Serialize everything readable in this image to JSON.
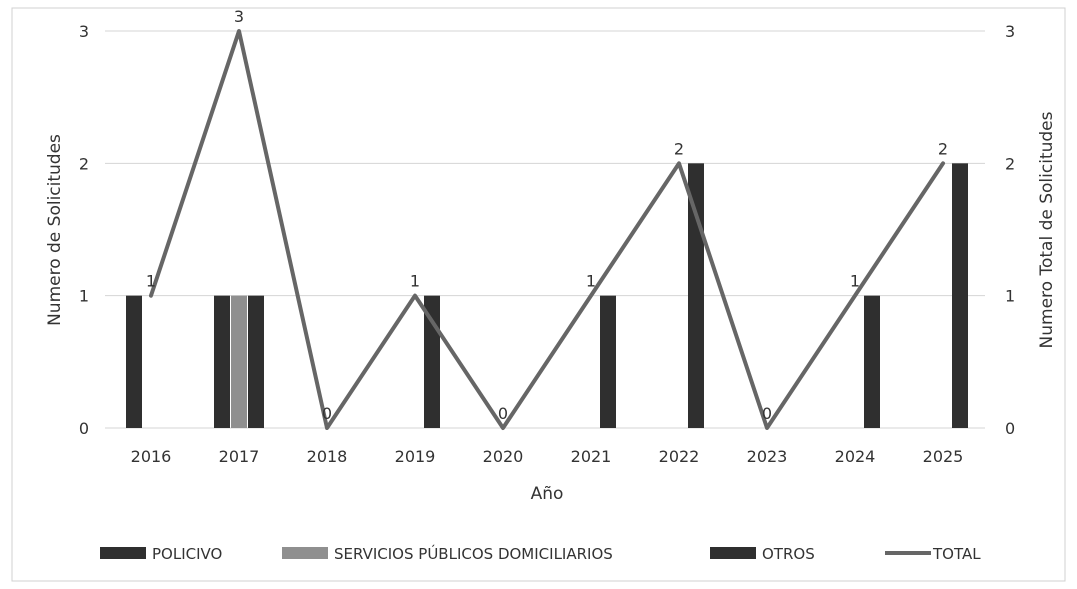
{
  "chart_data": {
    "type": "bar",
    "categories": [
      "2016",
      "2017",
      "2018",
      "2019",
      "2020",
      "2021",
      "2022",
      "2023",
      "2024",
      "2025"
    ],
    "series": [
      {
        "name": "POLICIVO",
        "kind": "bar",
        "color": "#2f2f2f",
        "values": [
          1,
          1,
          0,
          0,
          0,
          0,
          0,
          0,
          0,
          0
        ]
      },
      {
        "name": "SERVICIOS PÚBLICOS DOMICILIARIOS",
        "kind": "bar",
        "color": "#8f8f8f",
        "values": [
          0,
          1,
          0,
          0,
          0,
          0,
          0,
          0,
          0,
          0
        ]
      },
      {
        "name": "OTROS",
        "kind": "bar",
        "color": "#2f2f2f",
        "values": [
          0,
          1,
          0,
          1,
          0,
          1,
          2,
          0,
          1,
          2
        ]
      },
      {
        "name": "TOTAL",
        "kind": "line",
        "color": "#666666",
        "values": [
          1,
          3,
          0,
          1,
          0,
          1,
          2,
          0,
          1,
          2
        ]
      }
    ],
    "xlabel": "Año",
    "ylabel": "Numero de Solicitudes",
    "y2label": "Numero Total de Solicitudes",
    "ylim": [
      0,
      3
    ],
    "y2lim": [
      0,
      3
    ],
    "yticks": [
      "0",
      "1",
      "2",
      "3"
    ],
    "data_labels": [
      "1",
      "3",
      "0",
      "1",
      "0",
      "1",
      "2",
      "0",
      "1",
      "2"
    ],
    "grid": true,
    "legend": "bottom"
  }
}
